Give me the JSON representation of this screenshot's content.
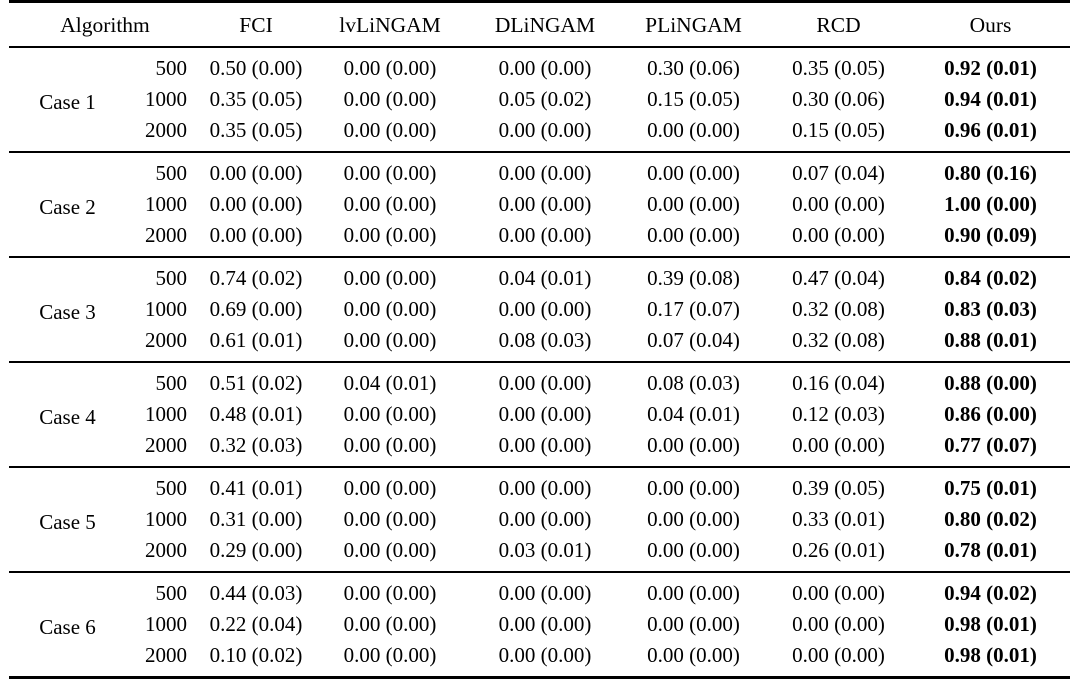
{
  "page": {
    "background_color": "#ffffff",
    "text_color": "#000000"
  },
  "table": {
    "headers": [
      "Algorithm",
      "FCI",
      "lvLiNGAM",
      "DLiNGAM",
      "PLiNGAM",
      "RCD",
      "Ours"
    ],
    "bold_column": "Ours",
    "value_format": "mean (std)",
    "groups": [
      {
        "case": "Case 1",
        "rows": [
          {
            "n": "500",
            "values": [
              "0.50 (0.00)",
              "0.00 (0.00)",
              "0.00 (0.00)",
              "0.30 (0.06)",
              "0.35 (0.05)",
              "0.92 (0.01)"
            ]
          },
          {
            "n": "1000",
            "values": [
              "0.35 (0.05)",
              "0.00 (0.00)",
              "0.05 (0.02)",
              "0.15 (0.05)",
              "0.30 (0.06)",
              "0.94 (0.01)"
            ]
          },
          {
            "n": "2000",
            "values": [
              "0.35 (0.05)",
              "0.00 (0.00)",
              "0.00 (0.00)",
              "0.00 (0.00)",
              "0.15 (0.05)",
              "0.96 (0.01)"
            ]
          }
        ]
      },
      {
        "case": "Case 2",
        "rows": [
          {
            "n": "500",
            "values": [
              "0.00 (0.00)",
              "0.00 (0.00)",
              "0.00 (0.00)",
              "0.00 (0.00)",
              "0.07 (0.04)",
              "0.80 (0.16)"
            ]
          },
          {
            "n": "1000",
            "values": [
              "0.00 (0.00)",
              "0.00 (0.00)",
              "0.00 (0.00)",
              "0.00 (0.00)",
              "0.00 (0.00)",
              "1.00 (0.00)"
            ]
          },
          {
            "n": "2000",
            "values": [
              "0.00 (0.00)",
              "0.00 (0.00)",
              "0.00 (0.00)",
              "0.00 (0.00)",
              "0.00 (0.00)",
              "0.90 (0.09)"
            ]
          }
        ]
      },
      {
        "case": "Case 3",
        "rows": [
          {
            "n": "500",
            "values": [
              "0.74 (0.02)",
              "0.00 (0.00)",
              "0.04 (0.01)",
              "0.39 (0.08)",
              "0.47 (0.04)",
              "0.84 (0.02)"
            ]
          },
          {
            "n": "1000",
            "values": [
              "0.69 (0.00)",
              "0.00 (0.00)",
              "0.00 (0.00)",
              "0.17 (0.07)",
              "0.32 (0.08)",
              "0.83 (0.03)"
            ]
          },
          {
            "n": "2000",
            "values": [
              "0.61 (0.01)",
              "0.00 (0.00)",
              "0.08 (0.03)",
              "0.07 (0.04)",
              "0.32 (0.08)",
              "0.88 (0.01)"
            ]
          }
        ]
      },
      {
        "case": "Case 4",
        "rows": [
          {
            "n": "500",
            "values": [
              "0.51 (0.02)",
              "0.04 (0.01)",
              "0.00 (0.00)",
              "0.08 (0.03)",
              "0.16 (0.04)",
              "0.88 (0.00)"
            ]
          },
          {
            "n": "1000",
            "values": [
              "0.48 (0.01)",
              "0.00 (0.00)",
              "0.00 (0.00)",
              "0.04 (0.01)",
              "0.12 (0.03)",
              "0.86 (0.00)"
            ]
          },
          {
            "n": "2000",
            "values": [
              "0.32 (0.03)",
              "0.00 (0.00)",
              "0.00 (0.00)",
              "0.00 (0.00)",
              "0.00 (0.00)",
              "0.77 (0.07)"
            ]
          }
        ]
      },
      {
        "case": "Case 5",
        "rows": [
          {
            "n": "500",
            "values": [
              "0.41 (0.01)",
              "0.00 (0.00)",
              "0.00 (0.00)",
              "0.00 (0.00)",
              "0.39 (0.05)",
              "0.75 (0.01)"
            ]
          },
          {
            "n": "1000",
            "values": [
              "0.31 (0.00)",
              "0.00 (0.00)",
              "0.00 (0.00)",
              "0.00 (0.00)",
              "0.33 (0.01)",
              "0.80 (0.02)"
            ]
          },
          {
            "n": "2000",
            "values": [
              "0.29 (0.00)",
              "0.00 (0.00)",
              "0.03 (0.01)",
              "0.00 (0.00)",
              "0.26 (0.01)",
              "0.78 (0.01)"
            ]
          }
        ]
      },
      {
        "case": "Case 6",
        "rows": [
          {
            "n": "500",
            "values": [
              "0.44 (0.03)",
              "0.00 (0.00)",
              "0.00 (0.00)",
              "0.00 (0.00)",
              "0.00 (0.00)",
              "0.94 (0.02)"
            ]
          },
          {
            "n": "1000",
            "values": [
              "0.22 (0.04)",
              "0.00 (0.00)",
              "0.00 (0.00)",
              "0.00 (0.00)",
              "0.00 (0.00)",
              "0.98 (0.01)"
            ]
          },
          {
            "n": "2000",
            "values": [
              "0.10 (0.02)",
              "0.00 (0.00)",
              "0.00 (0.00)",
              "0.00 (0.00)",
              "0.00 (0.00)",
              "0.98 (0.01)"
            ]
          }
        ]
      }
    ]
  }
}
